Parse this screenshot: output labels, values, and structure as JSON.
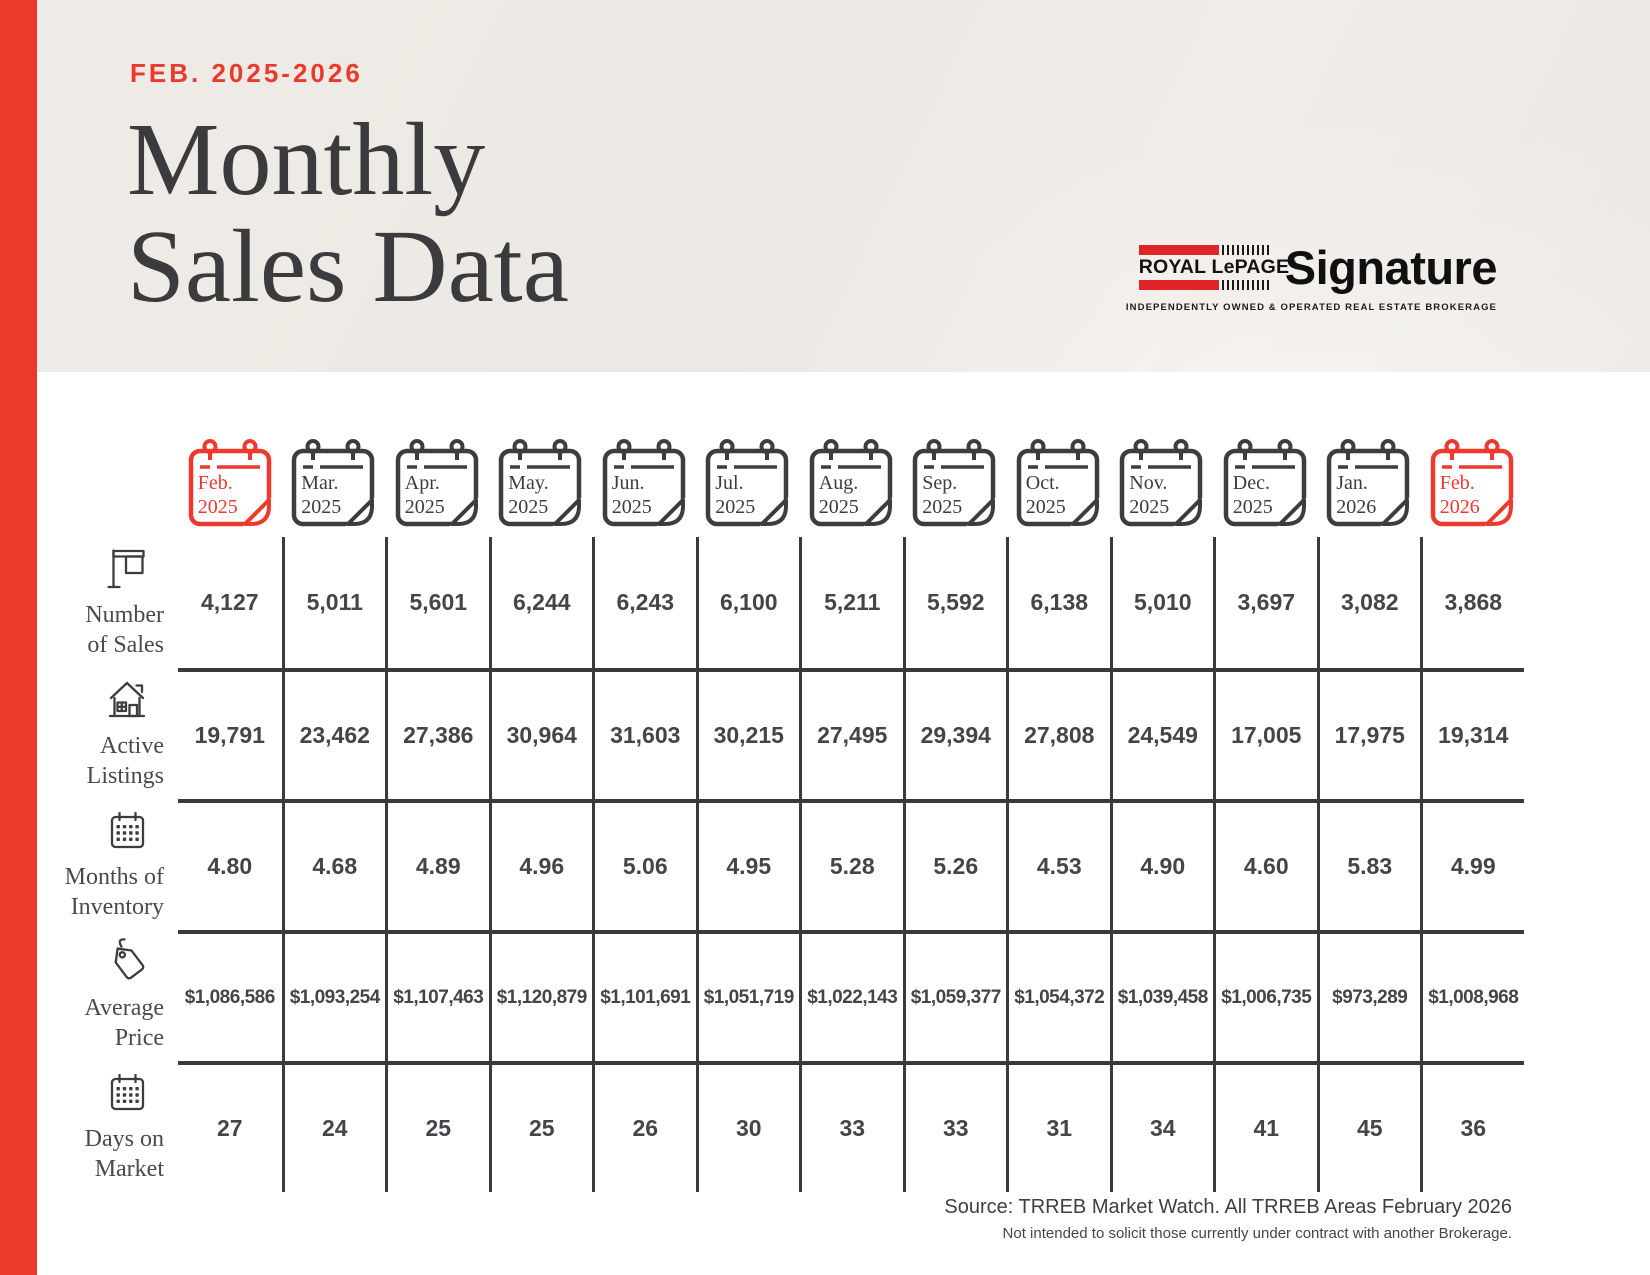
{
  "colors": {
    "accent_red": "#EC392C",
    "calendar_red": "#EE3A2E",
    "ink": "#3D3D40",
    "logo_red": "#E02427",
    "header_bg": "#EDE9E4"
  },
  "header": {
    "period_label": "FEB. 2025-2026",
    "title_line1": "Monthly",
    "title_line2": "Sales Data",
    "logo": {
      "brand": "ROYAL LePAGE",
      "registered": "®",
      "name": "Signature",
      "tagline": "INDEPENDENTLY OWNED & OPERATED REAL ESTATE BROKERAGE"
    }
  },
  "table": {
    "months": [
      {
        "line1": "Feb.",
        "line2": "2025",
        "highlight": true
      },
      {
        "line1": "Mar.",
        "line2": "2025",
        "highlight": false
      },
      {
        "line1": "Apr.",
        "line2": "2025",
        "highlight": false
      },
      {
        "line1": "May.",
        "line2": "2025",
        "highlight": false
      },
      {
        "line1": "Jun.",
        "line2": "2025",
        "highlight": false
      },
      {
        "line1": "Jul.",
        "line2": "2025",
        "highlight": false
      },
      {
        "line1": "Aug.",
        "line2": "2025",
        "highlight": false
      },
      {
        "line1": "Sep.",
        "line2": "2025",
        "highlight": false
      },
      {
        "line1": "Oct.",
        "line2": "2025",
        "highlight": false
      },
      {
        "line1": "Nov.",
        "line2": "2025",
        "highlight": false
      },
      {
        "line1": "Dec.",
        "line2": "2025",
        "highlight": false
      },
      {
        "line1": "Jan.",
        "line2": "2026",
        "highlight": false
      },
      {
        "line1": "Feb.",
        "line2": "2026",
        "highlight": true
      }
    ],
    "rows": [
      {
        "icon": "sale-sign",
        "label_lines": [
          "Number",
          "of Sales"
        ],
        "values": [
          "4,127",
          "5,011",
          "5,601",
          "6,244",
          "6,243",
          "6,100",
          "5,211",
          "5,592",
          "6,138",
          "5,010",
          "3,697",
          "3,082",
          "3,868"
        ]
      },
      {
        "icon": "house",
        "label_lines": [
          "Active",
          "Listings"
        ],
        "values": [
          "19,791",
          "23,462",
          "27,386",
          "30,964",
          "31,603",
          "30,215",
          "27,495",
          "29,394",
          "27,808",
          "24,549",
          "17,005",
          "17,975",
          "19,314"
        ]
      },
      {
        "icon": "calendar-grid",
        "label_lines": [
          "Months of",
          "Inventory"
        ],
        "values": [
          "4.80",
          "4.68",
          "4.89",
          "4.96",
          "5.06",
          "4.95",
          "5.28",
          "5.26",
          "4.53",
          "4.90",
          "4.60",
          "5.83",
          "4.99"
        ]
      },
      {
        "icon": "price-tag",
        "label_lines": [
          "Average",
          "Price"
        ],
        "values": [
          "$1,086,586",
          "$1,093,254",
          "$1,107,463",
          "$1,120,879",
          "$1,101,691",
          "$1,051,719",
          "$1,022,143",
          "$1,059,377",
          "$1,054,372",
          "$1,039,458",
          "$1,006,735",
          "$973,289",
          "$1,008,968"
        ]
      },
      {
        "icon": "calendar-grid",
        "label_lines": [
          "Days on",
          "Market"
        ],
        "values": [
          "27",
          "24",
          "25",
          "25",
          "26",
          "30",
          "33",
          "33",
          "31",
          "34",
          "41",
          "45",
          "36"
        ]
      }
    ]
  },
  "footer": {
    "source": "Source: TRREB Market Watch. All TRREB Areas February 2026",
    "disclaimer": "Not intended to solicit those currently under contract with another Brokerage."
  },
  "chart_data": {
    "type": "table",
    "title": "Monthly Sales Data",
    "subtitle": "FEB. 2025-2026",
    "categories": [
      "Feb. 2025",
      "Mar. 2025",
      "Apr. 2025",
      "May. 2025",
      "Jun. 2025",
      "Jul. 2025",
      "Aug. 2025",
      "Sep. 2025",
      "Oct. 2025",
      "Nov. 2025",
      "Dec. 2025",
      "Jan. 2026",
      "Feb. 2026"
    ],
    "series": [
      {
        "name": "Number of Sales",
        "values": [
          4127,
          5011,
          5601,
          6244,
          6243,
          6100,
          5211,
          5592,
          6138,
          5010,
          3697,
          3082,
          3868
        ]
      },
      {
        "name": "Active Listings",
        "values": [
          19791,
          23462,
          27386,
          30964,
          31603,
          30215,
          27495,
          29394,
          27808,
          24549,
          17005,
          17975,
          19314
        ]
      },
      {
        "name": "Months of Inventory",
        "values": [
          4.8,
          4.68,
          4.89,
          4.96,
          5.06,
          4.95,
          5.28,
          5.26,
          4.53,
          4.9,
          4.6,
          5.83,
          4.99
        ]
      },
      {
        "name": "Average Price",
        "values": [
          1086586,
          1093254,
          1107463,
          1120879,
          1101691,
          1051719,
          1022143,
          1059377,
          1054372,
          1039458,
          1006735,
          973289,
          1008968
        ]
      },
      {
        "name": "Days on Market",
        "values": [
          27,
          24,
          25,
          25,
          26,
          30,
          33,
          33,
          31,
          34,
          41,
          45,
          36
        ]
      }
    ]
  }
}
